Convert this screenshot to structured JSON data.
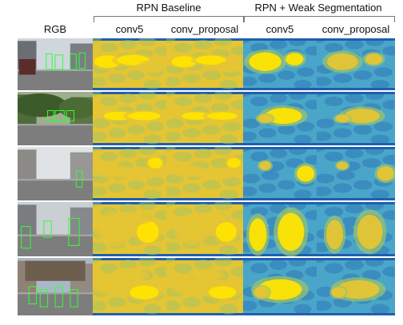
{
  "header": {
    "group_1_title": "RPN Baseline",
    "group_2_title": "RPN + Weak Segmentation"
  },
  "columns": [
    {
      "id": "rgb",
      "label": "RGB"
    },
    {
      "id": "baseline_conv5",
      "label": "conv5"
    },
    {
      "id": "baseline_conv_proposal",
      "label": "conv_proposal"
    },
    {
      "id": "weakseg_conv5",
      "label": "conv5"
    },
    {
      "id": "weakseg_conv_proposal",
      "label": "conv_proposal"
    }
  ],
  "rows": [
    {
      "scene": "street with pedestrians and cars, green box detections"
    },
    {
      "scene": "tree-lined road with green box detections"
    },
    {
      "scene": "city street with buildings and a pedestrian detection"
    },
    {
      "scene": "cyclists and pedestrians on street"
    },
    {
      "scene": "urban intersection with many pedestrians"
    }
  ],
  "colors": {
    "heat_low": "#1f5fb0",
    "heat_mid_low": "#4aa6c8",
    "heat_mid": "#9cc46a",
    "heat_high": "#e5c534",
    "heat_peak": "#ffe400",
    "box": "#33ff33"
  }
}
